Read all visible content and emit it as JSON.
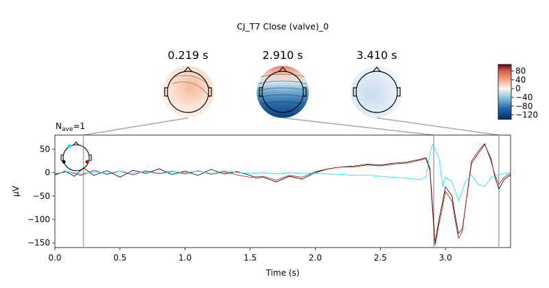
{
  "chart_data": {
    "type": "line",
    "title": "CJ_T7 Close (valve)_0",
    "nave_label": "N",
    "nave_sub": "ave",
    "nave_value": "=1",
    "xlabel": "Time (s)",
    "ylabel": "µV",
    "xlim": [
      0.0,
      3.5
    ],
    "ylim": [
      -160,
      80
    ],
    "xticks": [
      0.0,
      0.5,
      1.0,
      1.5,
      2.0,
      2.5,
      3.0
    ],
    "xtick_labels": [
      "0.0",
      "0.5",
      "1.0",
      "1.5",
      "2.0",
      "2.5",
      "3.0"
    ],
    "yticks": [
      50,
      0,
      -50,
      -100,
      -150
    ],
    "ytick_labels": [
      "50",
      "0",
      "−50",
      "−100",
      "−150"
    ],
    "grid": false,
    "markers": [
      {
        "time": 0.219,
        "label": "0.219 s"
      },
      {
        "time": 2.91,
        "label": "2.910 s"
      },
      {
        "time": 3.41,
        "label": "3.410 s"
      }
    ],
    "series": [
      {
        "color": "#000000",
        "points": [
          [
            0.0,
            -5
          ],
          [
            0.08,
            3
          ],
          [
            0.15,
            -8
          ],
          [
            0.22,
            10
          ],
          [
            0.3,
            -6
          ],
          [
            0.4,
            4
          ],
          [
            0.5,
            -10
          ],
          [
            0.6,
            5
          ],
          [
            0.7,
            -2
          ],
          [
            0.8,
            8
          ],
          [
            0.9,
            -4
          ],
          [
            1.0,
            3
          ],
          [
            1.1,
            -6
          ],
          [
            1.2,
            7
          ],
          [
            1.3,
            -3
          ],
          [
            1.4,
            2
          ],
          [
            1.5,
            -6
          ],
          [
            1.55,
            -12
          ],
          [
            1.6,
            -10
          ],
          [
            1.7,
            -20
          ],
          [
            1.8,
            -8
          ],
          [
            1.9,
            -14
          ],
          [
            2.0,
            0
          ],
          [
            2.1,
            8
          ],
          [
            2.2,
            12
          ],
          [
            2.3,
            14
          ],
          [
            2.4,
            18
          ],
          [
            2.5,
            16
          ],
          [
            2.6,
            20
          ],
          [
            2.7,
            22
          ],
          [
            2.8,
            28
          ],
          [
            2.85,
            32
          ],
          [
            2.88,
            10
          ],
          [
            2.9,
            -70
          ],
          [
            2.92,
            -150
          ],
          [
            2.95,
            -100
          ],
          [
            2.98,
            -60
          ],
          [
            3.0,
            -30
          ],
          [
            3.05,
            -50
          ],
          [
            3.08,
            -100
          ],
          [
            3.1,
            -130
          ],
          [
            3.13,
            -120
          ],
          [
            3.15,
            -80
          ],
          [
            3.2,
            20
          ],
          [
            3.25,
            40
          ],
          [
            3.3,
            60
          ],
          [
            3.35,
            30
          ],
          [
            3.38,
            -10
          ],
          [
            3.41,
            -35
          ],
          [
            3.45,
            -15
          ],
          [
            3.5,
            -5
          ]
        ]
      },
      {
        "color": "#c00000",
        "points": [
          [
            0.0,
            -3
          ],
          [
            0.1,
            2
          ],
          [
            0.2,
            -6
          ],
          [
            0.3,
            5
          ],
          [
            0.4,
            -4
          ],
          [
            0.5,
            3
          ],
          [
            0.6,
            -5
          ],
          [
            0.7,
            4
          ],
          [
            0.8,
            -2
          ],
          [
            0.9,
            3
          ],
          [
            1.0,
            -3
          ],
          [
            1.1,
            4
          ],
          [
            1.2,
            -4
          ],
          [
            1.3,
            2
          ],
          [
            1.4,
            -5
          ],
          [
            1.5,
            -10
          ],
          [
            1.6,
            -8
          ],
          [
            1.7,
            -16
          ],
          [
            1.8,
            -6
          ],
          [
            1.9,
            -10
          ],
          [
            2.0,
            2
          ],
          [
            2.1,
            8
          ],
          [
            2.2,
            12
          ],
          [
            2.3,
            12
          ],
          [
            2.4,
            16
          ],
          [
            2.5,
            14
          ],
          [
            2.6,
            18
          ],
          [
            2.7,
            20
          ],
          [
            2.8,
            26
          ],
          [
            2.85,
            30
          ],
          [
            2.88,
            5
          ],
          [
            2.9,
            -80
          ],
          [
            2.92,
            -155
          ],
          [
            2.95,
            -110
          ],
          [
            2.98,
            -70
          ],
          [
            3.0,
            -40
          ],
          [
            3.05,
            -60
          ],
          [
            3.08,
            -110
          ],
          [
            3.1,
            -140
          ],
          [
            3.13,
            -125
          ],
          [
            3.15,
            -80
          ],
          [
            3.2,
            25
          ],
          [
            3.25,
            45
          ],
          [
            3.3,
            62
          ],
          [
            3.35,
            25
          ],
          [
            3.38,
            -5
          ],
          [
            3.41,
            -25
          ],
          [
            3.45,
            -10
          ],
          [
            3.5,
            -2
          ]
        ]
      },
      {
        "color": "#00e5ff",
        "points": [
          [
            0.0,
            -2
          ],
          [
            0.1,
            2
          ],
          [
            0.2,
            -3
          ],
          [
            0.3,
            2
          ],
          [
            0.4,
            -2
          ],
          [
            0.5,
            3
          ],
          [
            0.6,
            -2
          ],
          [
            0.7,
            2
          ],
          [
            0.8,
            -3
          ],
          [
            0.9,
            2
          ],
          [
            1.0,
            0
          ],
          [
            1.1,
            3
          ],
          [
            1.2,
            -2
          ],
          [
            1.3,
            4
          ],
          [
            1.4,
            0
          ],
          [
            1.5,
            -2
          ],
          [
            1.6,
            0
          ],
          [
            1.7,
            -3
          ],
          [
            1.8,
            0
          ],
          [
            1.9,
            -2
          ],
          [
            2.0,
            -1
          ],
          [
            2.1,
            -3
          ],
          [
            2.2,
            -4
          ],
          [
            2.3,
            -6
          ],
          [
            2.4,
            -5
          ],
          [
            2.5,
            -8
          ],
          [
            2.6,
            -10
          ],
          [
            2.7,
            -12
          ],
          [
            2.8,
            -15
          ],
          [
            2.85,
            -10
          ],
          [
            2.88,
            40
          ],
          [
            2.9,
            60
          ],
          [
            2.92,
            50
          ],
          [
            2.95,
            30
          ],
          [
            2.98,
            -30
          ],
          [
            3.0,
            -10
          ],
          [
            3.05,
            -20
          ],
          [
            3.1,
            -60
          ],
          [
            3.13,
            -40
          ],
          [
            3.15,
            -20
          ],
          [
            3.2,
            -5
          ],
          [
            3.25,
            -25
          ],
          [
            3.3,
            -30
          ],
          [
            3.35,
            -10
          ],
          [
            3.4,
            -5
          ],
          [
            3.45,
            -2
          ],
          [
            3.5,
            0
          ]
        ]
      }
    ],
    "topomaps": [
      {
        "time_label": "0.219 s",
        "pattern": "frontal-right-positive"
      },
      {
        "time_label": "2.910 s",
        "pattern": "frontal-positive-posterior-negative"
      },
      {
        "time_label": "3.410 s",
        "pattern": "weak-negative"
      }
    ],
    "colorbar": {
      "ticks": [
        80,
        40,
        0,
        -40,
        -80,
        -120
      ],
      "tick_labels": [
        "80",
        "40",
        "0",
        "−40",
        "−80",
        "−120"
      ],
      "range": [
        -140,
        110
      ],
      "colormap": "RdBu_r"
    },
    "inset_sensors": {
      "highlight_colors": [
        "#00e5ff",
        "#c00000",
        "#000000"
      ]
    }
  }
}
